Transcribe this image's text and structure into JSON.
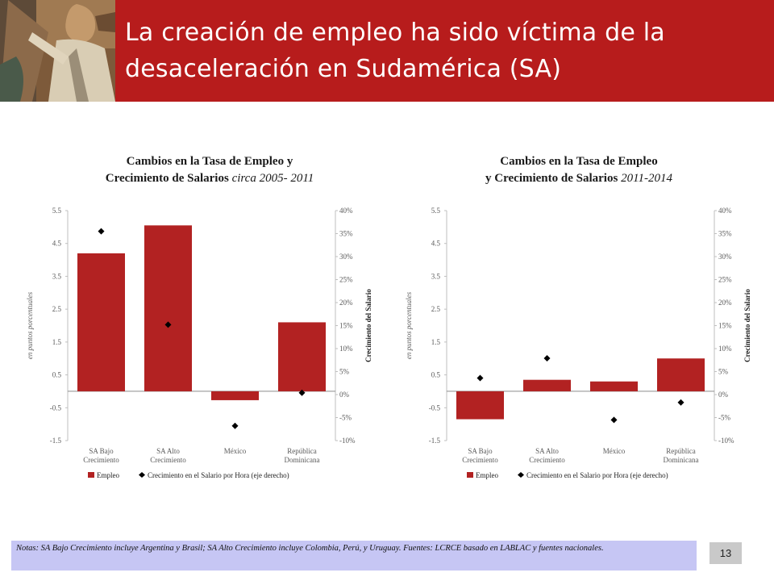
{
  "header": {
    "title": "La creación de empleo ha sido víctima de la desaceleración en Sudamérica (SA)"
  },
  "chart_data": [
    {
      "type": "bar",
      "title": "Cambios en la Tasa de Empleo y",
      "subtitle": "Crecimiento de Salarios",
      "subtitle_italic": "circa 2005- 2011",
      "ylabel": "en puntos porcentuales",
      "y2label": "Crecimiento del Salario",
      "ylim": [
        -1.5,
        5.5
      ],
      "y2lim": [
        -10,
        40
      ],
      "yticks": [
        "5.5",
        "4.5",
        "3.5",
        "2.5",
        "1.5",
        "0.5",
        "-0.5",
        "-1.5"
      ],
      "y2ticks": [
        "40%",
        "35%",
        "30%",
        "25%",
        "20%",
        "15%",
        "10%",
        "5%",
        "0%",
        "-5%",
        "-10%"
      ],
      "categories": [
        [
          "SA Bajo",
          "Crecimiento"
        ],
        [
          "SA Alto",
          "Crecimiento"
        ],
        [
          "México"
        ],
        [
          "República",
          "Dominicana"
        ]
      ],
      "series": [
        {
          "name": "Empleo",
          "kind": "bar",
          "axis": "left",
          "color": "#b22222",
          "values": [
            4.2,
            5.05,
            -0.27,
            2.1
          ]
        },
        {
          "name": "Crecimiento en el Salario por Hora (eje derecho)",
          "kind": "marker",
          "axis": "right",
          "color": "#000000",
          "values": [
            35.5,
            15.2,
            -6.8,
            0.4
          ]
        }
      ]
    },
    {
      "type": "bar",
      "title": "Cambios en la Tasa de Empleo",
      "subtitle": "y Crecimiento de Salarios",
      "subtitle_italic": "2011-2014",
      "ylabel": "en puntos porcentuales",
      "y2label": "Crecimiento del Salario",
      "ylim": [
        -1.5,
        5.5
      ],
      "y2lim": [
        -10,
        40
      ],
      "yticks": [
        "5.5",
        "4.5",
        "3.5",
        "2.5",
        "1.5",
        "0.5",
        "-0.5",
        "-1.5"
      ],
      "y2ticks": [
        "40%",
        "35%",
        "30%",
        "25%",
        "20%",
        "15%",
        "10%",
        "5%",
        "0%",
        "-5%",
        "-10%"
      ],
      "categories": [
        [
          "SA Bajo",
          "Crecimiento"
        ],
        [
          "SA Alto",
          "Crecimiento"
        ],
        [
          "México"
        ],
        [
          "República",
          "Dominicana"
        ]
      ],
      "series": [
        {
          "name": "Empleo",
          "kind": "bar",
          "axis": "left",
          "color": "#b22222",
          "values": [
            -0.85,
            0.35,
            0.3,
            1.0
          ]
        },
        {
          "name": "Crecimiento en el Salario por Hora (eje derecho)",
          "kind": "marker",
          "axis": "right",
          "color": "#000000",
          "values": [
            3.6,
            7.9,
            -5.5,
            -1.7
          ]
        }
      ]
    }
  ],
  "notes": "Notas: SA Bajo Crecimiento incluye Argentina y Brasil; SA Alto Crecimiento incluye Colombia, Perú, y Uruguay. Fuentes: LCRCE basado en LABLAC y fuentes nacionales.",
  "page_number": "13"
}
